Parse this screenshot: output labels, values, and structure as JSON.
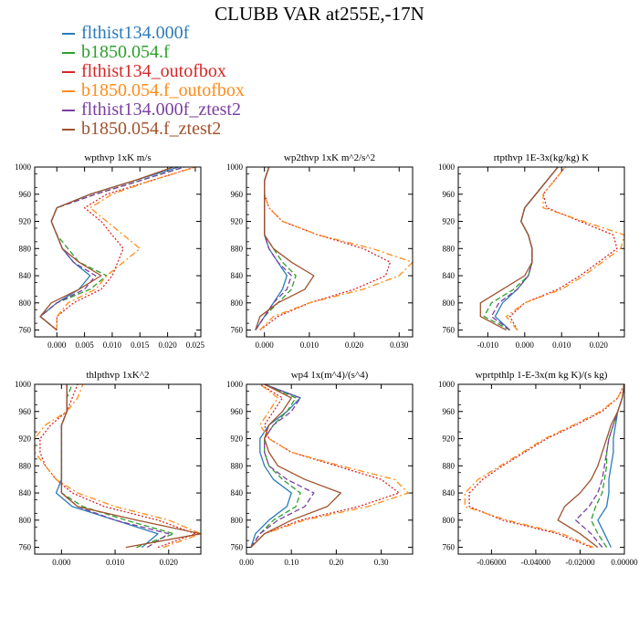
{
  "title": "CLUBB VAR at255E,-17N",
  "legend": [
    {
      "name": "flthist134.000f",
      "color": "#2b7bb9",
      "dash": "solid"
    },
    {
      "name": "b1850.054.f",
      "color": "#2ca02c",
      "dash": "dashed"
    },
    {
      "name": "flthist134_outofbox",
      "color": "#d62728",
      "dash": "dotted"
    },
    {
      "name": "b1850.054.f_outofbox",
      "color": "#ff8c1a",
      "dash": "dashdot"
    },
    {
      "name": "flthist134.000f_ztest2",
      "color": "#7b3fa0",
      "dash": "dashed"
    },
    {
      "name": "b1850.054.f_ztest2",
      "color": "#a0522d",
      "dash": "solid"
    }
  ],
  "chart_data": [
    {
      "type": "line",
      "title": "wpthvp  1xK m/s",
      "xlim": [
        -0.004,
        0.026
      ],
      "ylim": [
        1000,
        750
      ],
      "xticks": [
        "0.000",
        "0.005",
        "0.010",
        "0.015",
        "0.020",
        "0.025"
      ],
      "yticks": [
        "760",
        "800",
        "840",
        "880",
        "920",
        "960",
        "1000"
      ],
      "y": [
        760,
        780,
        800,
        820,
        840,
        860,
        880,
        900,
        920,
        940,
        960,
        980,
        1000
      ],
      "series": [
        {
          "name": "flthist134.000f",
          "values": [
            0.0,
            -0.003,
            0.0,
            0.004,
            0.006,
            0.003,
            0.001,
            0.0,
            -0.001,
            0.0,
            0.006,
            0.014,
            0.022
          ]
        },
        {
          "name": "b1850.054.f",
          "values": [
            0.0,
            -0.003,
            0.0,
            0.006,
            0.009,
            0.004,
            0.002,
            0.0,
            -0.001,
            0.0,
            0.007,
            0.015,
            0.023
          ]
        },
        {
          "name": "flthist134_outofbox",
          "values": [
            0.0,
            0.0,
            0.003,
            0.008,
            0.01,
            0.011,
            0.012,
            0.01,
            0.008,
            0.005,
            0.009,
            0.017,
            0.025
          ]
        },
        {
          "name": "b1850.054.f_outofbox",
          "values": [
            0.0,
            0.0,
            0.002,
            0.007,
            0.009,
            0.012,
            0.015,
            0.012,
            0.009,
            0.006,
            0.01,
            0.017,
            0.025
          ]
        },
        {
          "name": "flthist134.000f_ztest2",
          "values": [
            0.0,
            -0.003,
            0.0,
            0.005,
            0.007,
            0.003,
            0.001,
            0.0,
            -0.001,
            0.0,
            0.007,
            0.015,
            0.023
          ]
        },
        {
          "name": "b1850.054.f_ztest2",
          "values": [
            0.0,
            -0.003,
            -0.001,
            0.004,
            0.008,
            0.004,
            0.001,
            0.0,
            -0.001,
            0.0,
            0.006,
            0.014,
            0.021
          ]
        }
      ]
    },
    {
      "type": "line",
      "title": "wp2thvp  1xK m^2/s^2",
      "xlim": [
        -0.004,
        0.033
      ],
      "ylim": [
        1000,
        750
      ],
      "xticks": [
        "0.000",
        "0.010",
        "0.020",
        "0.030"
      ],
      "yticks": [
        "760",
        "800",
        "840",
        "880",
        "920",
        "960",
        "1000"
      ],
      "y": [
        760,
        780,
        800,
        820,
        840,
        860,
        880,
        900,
        920,
        940,
        960,
        980,
        1000
      ],
      "series": [
        {
          "name": "flthist134.000f",
          "values": [
            -0.002,
            0.0,
            0.002,
            0.004,
            0.005,
            0.003,
            0.001,
            0.0,
            0.0,
            0.0,
            0.0,
            0.0,
            0.001
          ]
        },
        {
          "name": "b1850.054.f",
          "values": [
            -0.002,
            0.0,
            0.003,
            0.006,
            0.007,
            0.004,
            0.002,
            0.0,
            0.0,
            0.0,
            0.0,
            0.0,
            0.001
          ]
        },
        {
          "name": "flthist134_outofbox",
          "values": [
            -0.001,
            0.003,
            0.01,
            0.02,
            0.027,
            0.028,
            0.022,
            0.012,
            0.004,
            0.001,
            0.0,
            0.0,
            0.001
          ]
        },
        {
          "name": "b1850.054.f_outofbox",
          "values": [
            -0.001,
            0.002,
            0.01,
            0.022,
            0.03,
            0.033,
            0.024,
            0.012,
            0.004,
            0.001,
            0.0,
            0.0,
            0.001
          ]
        },
        {
          "name": "flthist134.000f_ztest2",
          "values": [
            -0.002,
            0.0,
            0.002,
            0.005,
            0.006,
            0.003,
            0.001,
            0.0,
            0.0,
            0.0,
            0.0,
            0.0,
            0.001
          ]
        },
        {
          "name": "b1850.054.f_ztest2",
          "values": [
            -0.002,
            -0.001,
            0.003,
            0.009,
            0.011,
            0.006,
            0.002,
            0.0,
            0.0,
            0.0,
            0.0,
            0.0,
            0.001
          ]
        }
      ]
    },
    {
      "type": "line",
      "title": "rtpthvp  1E-3x(kg/kg) K",
      "xlim": [
        -0.018,
        0.027
      ],
      "ylim": [
        1000,
        750
      ],
      "xticks": [
        "-0.010",
        "0.000",
        "0.010",
        "0.020"
      ],
      "yticks": [
        "760",
        "800",
        "840",
        "880",
        "920",
        "960",
        "1000"
      ],
      "y": [
        760,
        780,
        800,
        820,
        840,
        860,
        880,
        900,
        920,
        940,
        960,
        980,
        1000
      ],
      "series": [
        {
          "name": "flthist134.000f",
          "values": [
            -0.004,
            -0.008,
            -0.006,
            -0.002,
            0.001,
            0.002,
            0.002,
            0.001,
            -0.001,
            0.0,
            0.003,
            0.006,
            0.009
          ]
        },
        {
          "name": "b1850.054.f",
          "values": [
            -0.004,
            -0.011,
            -0.009,
            -0.003,
            0.001,
            0.002,
            0.002,
            0.001,
            -0.001,
            0.0,
            0.003,
            0.006,
            0.009
          ]
        },
        {
          "name": "flthist134_outofbox",
          "values": [
            -0.002,
            -0.004,
            0.0,
            0.009,
            0.015,
            0.02,
            0.025,
            0.024,
            0.015,
            0.006,
            0.005,
            0.008,
            0.011
          ]
        },
        {
          "name": "b1850.054.f_outofbox",
          "values": [
            -0.002,
            -0.005,
            0.0,
            0.01,
            0.016,
            0.021,
            0.026,
            0.027,
            0.016,
            0.005,
            0.005,
            0.008,
            0.011
          ]
        },
        {
          "name": "flthist134.000f_ztest2",
          "values": [
            -0.004,
            -0.009,
            -0.007,
            -0.002,
            0.001,
            0.002,
            0.002,
            0.001,
            -0.001,
            0.0,
            0.003,
            0.006,
            0.009
          ]
        },
        {
          "name": "b1850.054.f_ztest2",
          "values": [
            -0.005,
            -0.012,
            -0.012,
            -0.006,
            0.0,
            0.002,
            0.002,
            0.001,
            -0.001,
            0.0,
            0.003,
            0.006,
            0.009
          ]
        }
      ]
    },
    {
      "type": "line",
      "title": "thlpthvp  1xK^2",
      "xlim": [
        -0.005,
        0.026
      ],
      "ylim": [
        1000,
        750
      ],
      "xticks": [
        "0.000",
        "0.010",
        "0.020"
      ],
      "yticks": [
        "760",
        "800",
        "840",
        "880",
        "920",
        "960",
        "1000"
      ],
      "y": [
        760,
        780,
        800,
        820,
        840,
        860,
        880,
        900,
        920,
        940,
        960,
        980,
        1000
      ],
      "series": [
        {
          "name": "flthist134.000f",
          "values": [
            0.015,
            0.018,
            0.01,
            0.002,
            -0.001,
            0.0,
            0.0,
            0.0,
            0.0,
            0.0,
            0.001,
            0.001,
            0.001
          ]
        },
        {
          "name": "b1850.054.f",
          "values": [
            0.014,
            0.021,
            0.012,
            0.004,
            0.0,
            0.0,
            0.0,
            0.0,
            0.0,
            0.0,
            0.001,
            0.001,
            0.002
          ]
        },
        {
          "name": "flthist134_outofbox",
          "values": [
            0.018,
            0.025,
            0.018,
            0.008,
            0.002,
            -0.001,
            -0.003,
            -0.004,
            -0.004,
            -0.002,
            0.001,
            0.002,
            0.003
          ]
        },
        {
          "name": "b1850.054.f_outofbox",
          "values": [
            0.019,
            0.026,
            0.02,
            0.01,
            0.003,
            -0.001,
            -0.003,
            -0.005,
            -0.005,
            -0.003,
            0.001,
            0.003,
            0.004
          ]
        },
        {
          "name": "flthist134.000f_ztest2",
          "values": [
            0.016,
            0.02,
            0.01,
            0.003,
            0.0,
            0.0,
            0.0,
            0.0,
            0.0,
            0.0,
            0.001,
            0.001,
            0.001
          ]
        },
        {
          "name": "b1850.054.f_ztest2",
          "values": [
            0.012,
            0.026,
            0.014,
            0.003,
            0.0,
            0.0,
            0.0,
            0.0,
            0.0,
            0.0,
            0.001,
            0.001,
            0.001
          ]
        }
      ]
    },
    {
      "type": "line",
      "title": "wp4  1x(m^4)/(s^4)",
      "xlim": [
        0.0,
        0.37
      ],
      "ylim": [
        1000,
        750
      ],
      "xticks": [
        "0.00",
        "0.10",
        "0.20",
        "0.30"
      ],
      "yticks": [
        "760",
        "800",
        "840",
        "880",
        "920",
        "960",
        "1000"
      ],
      "y": [
        760,
        780,
        800,
        820,
        840,
        860,
        880,
        900,
        920,
        940,
        960,
        980,
        1000
      ],
      "series": [
        {
          "name": "flthist134.000f",
          "values": [
            0.01,
            0.02,
            0.05,
            0.09,
            0.1,
            0.06,
            0.04,
            0.03,
            0.03,
            0.05,
            0.09,
            0.12,
            0.04
          ]
        },
        {
          "name": "b1850.054.f",
          "values": [
            0.01,
            0.03,
            0.06,
            0.11,
            0.12,
            0.08,
            0.05,
            0.04,
            0.04,
            0.06,
            0.09,
            0.11,
            0.04
          ]
        },
        {
          "name": "flthist134_outofbox",
          "values": [
            0.01,
            0.04,
            0.12,
            0.25,
            0.34,
            0.3,
            0.2,
            0.1,
            0.05,
            0.04,
            0.06,
            0.08,
            0.03
          ]
        },
        {
          "name": "b1850.054.f_outofbox",
          "values": [
            0.01,
            0.04,
            0.13,
            0.27,
            0.36,
            0.33,
            0.21,
            0.1,
            0.05,
            0.03,
            0.05,
            0.07,
            0.03
          ]
        },
        {
          "name": "flthist134.000f_ztest2",
          "values": [
            0.01,
            0.03,
            0.07,
            0.13,
            0.15,
            0.09,
            0.05,
            0.04,
            0.04,
            0.06,
            0.1,
            0.12,
            0.04
          ]
        },
        {
          "name": "b1850.054.f_ztest2",
          "values": [
            0.01,
            0.04,
            0.1,
            0.18,
            0.21,
            0.13,
            0.07,
            0.05,
            0.04,
            0.05,
            0.08,
            0.1,
            0.04
          ]
        }
      ]
    },
    {
      "type": "line",
      "title": "wprtpthlp  1-E-3x(m kg K)/(s kg)",
      "xlim": [
        -0.075,
        0.0
      ],
      "ylim": [
        1000,
        750
      ],
      "xticks": [
        "-0.06000",
        "-0.04000",
        "-0.02000",
        "0.00000"
      ],
      "yticks": [
        "760",
        "800",
        "840",
        "880",
        "920",
        "960",
        "1000"
      ],
      "y": [
        760,
        780,
        800,
        820,
        840,
        860,
        880,
        900,
        920,
        940,
        960,
        980,
        1000
      ],
      "series": [
        {
          "name": "flthist134.000f",
          "values": [
            -0.006,
            -0.009,
            -0.012,
            -0.008,
            -0.007,
            -0.007,
            -0.006,
            -0.005,
            -0.005,
            -0.004,
            -0.003,
            -0.001,
            0.0
          ]
        },
        {
          "name": "b1850.054.f",
          "values": [
            -0.008,
            -0.012,
            -0.015,
            -0.013,
            -0.01,
            -0.009,
            -0.008,
            -0.008,
            -0.007,
            -0.005,
            -0.003,
            -0.001,
            0.0
          ]
        },
        {
          "name": "flthist134_outofbox",
          "values": [
            -0.015,
            -0.03,
            -0.055,
            -0.07,
            -0.07,
            -0.064,
            -0.055,
            -0.045,
            -0.035,
            -0.022,
            -0.01,
            -0.003,
            0.0
          ]
        },
        {
          "name": "b1850.054.f_outofbox",
          "values": [
            -0.014,
            -0.028,
            -0.053,
            -0.072,
            -0.072,
            -0.066,
            -0.056,
            -0.046,
            -0.036,
            -0.023,
            -0.011,
            -0.003,
            0.0
          ]
        },
        {
          "name": "flthist134.000f_ztest2",
          "values": [
            -0.01,
            -0.015,
            -0.022,
            -0.016,
            -0.012,
            -0.01,
            -0.009,
            -0.008,
            -0.007,
            -0.005,
            -0.003,
            -0.001,
            0.0
          ]
        },
        {
          "name": "b1850.054.f_ztest2",
          "values": [
            -0.012,
            -0.02,
            -0.03,
            -0.027,
            -0.02,
            -0.015,
            -0.012,
            -0.01,
            -0.008,
            -0.006,
            -0.003,
            -0.001,
            0.0
          ]
        }
      ]
    }
  ]
}
